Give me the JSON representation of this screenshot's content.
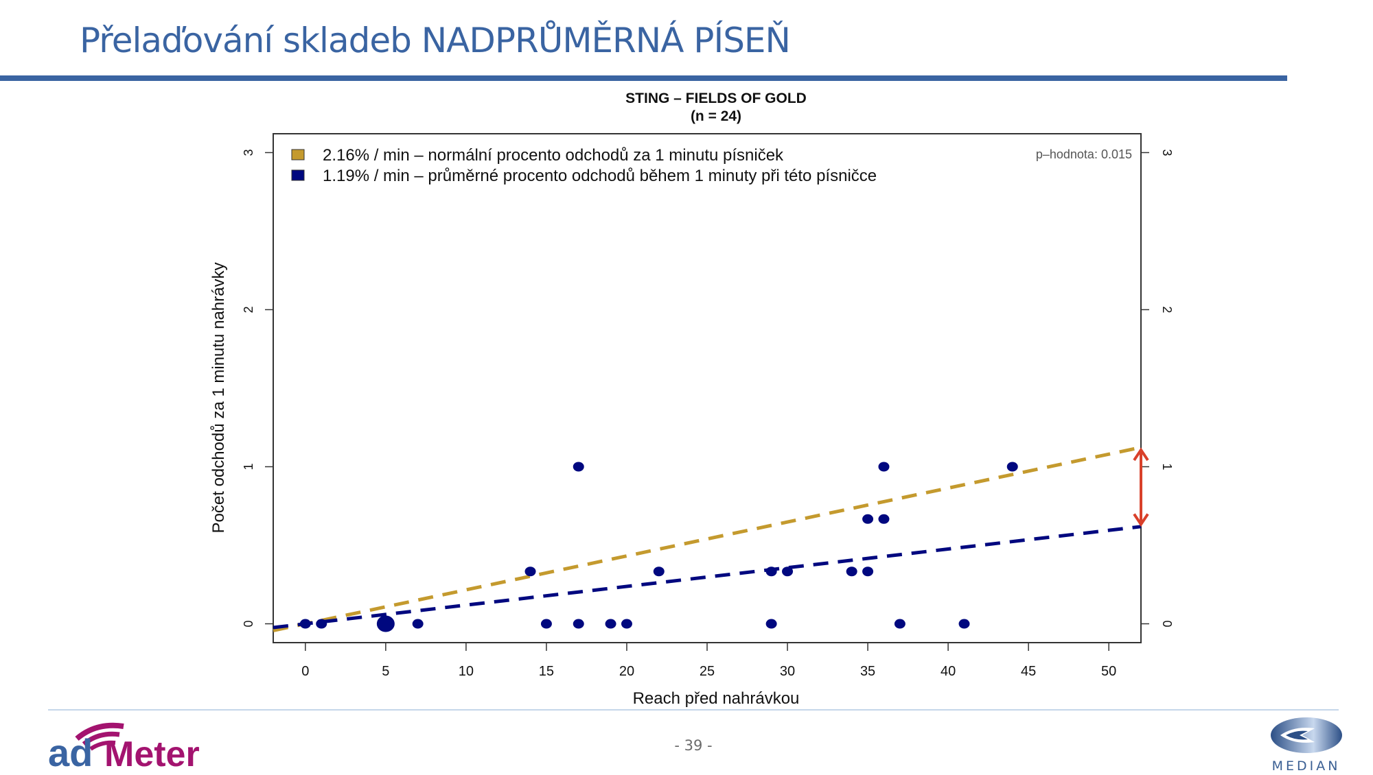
{
  "slide": {
    "title": "Přelaďování skladeb NADPRŮMĚRNÁ PÍSEŇ",
    "page_number": "- 39 -",
    "logo_left": {
      "part1": "ad",
      "part2": "Meter",
      "color1": "#3a64a2",
      "color2": "#a3136f"
    },
    "logo_right": {
      "name": "MEDIAN"
    }
  },
  "chart_data": {
    "type": "scatter",
    "title": "STING – FIELDS OF GOLD",
    "subtitle": "(n = 24)",
    "xlabel": "Reach před nahrávkou",
    "ylabel": "Počet odchodů za 1 minutu nahrávky",
    "xlim": [
      -2,
      52
    ],
    "ylim": [
      -0.12,
      3.12
    ],
    "x_ticks": [
      0,
      5,
      10,
      15,
      20,
      25,
      30,
      35,
      40,
      45,
      50
    ],
    "y_ticks": [
      0,
      1,
      2,
      3
    ],
    "annotation": "p–hodnota: 0.015",
    "grid": false,
    "legend_position": "top-left",
    "legend": [
      {
        "label": "2.16% / min – normální procento odchodů za 1 minutu písniček",
        "color": "#c49a2e"
      },
      {
        "label": "1.19% / min – průměrné procento odchodů během 1 minuty při této písničce",
        "color": "#00087f"
      }
    ],
    "series": [
      {
        "name": "points",
        "color": "#00087f",
        "points": [
          {
            "x": 0,
            "y": 0
          },
          {
            "x": 1,
            "y": 0
          },
          {
            "x": 5,
            "y": 0,
            "count": 3
          },
          {
            "x": 7,
            "y": 0
          },
          {
            "x": 15,
            "y": 0
          },
          {
            "x": 17,
            "y": 0
          },
          {
            "x": 19,
            "y": 0
          },
          {
            "x": 20,
            "y": 0
          },
          {
            "x": 29,
            "y": 0
          },
          {
            "x": 37,
            "y": 0
          },
          {
            "x": 41,
            "y": 0
          },
          {
            "x": 14,
            "y": 0.333
          },
          {
            "x": 22,
            "y": 0.333
          },
          {
            "x": 29,
            "y": 0.333
          },
          {
            "x": 30,
            "y": 0.333
          },
          {
            "x": 34,
            "y": 0.333
          },
          {
            "x": 35,
            "y": 0.333
          },
          {
            "x": 35,
            "y": 0.667
          },
          {
            "x": 36,
            "y": 0.667
          },
          {
            "x": 17,
            "y": 1
          },
          {
            "x": 36,
            "y": 1
          },
          {
            "x": 44,
            "y": 1
          }
        ]
      }
    ],
    "lines": [
      {
        "name": "normal-rate",
        "slope": 0.0216,
        "intercept": 0,
        "color": "#c49a2e",
        "style": "dashed"
      },
      {
        "name": "song-rate",
        "slope": 0.0119,
        "intercept": 0,
        "color": "#00087f",
        "style": "dashed"
      }
    ],
    "arrow": {
      "x": 52,
      "y_from": 0.62,
      "y_to": 1.12,
      "color": "#d9402a"
    }
  }
}
